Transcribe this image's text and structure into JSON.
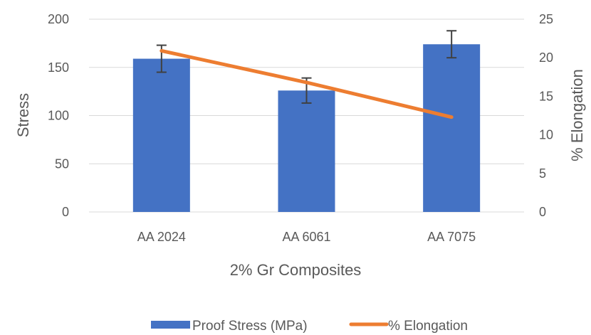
{
  "chart_data": {
    "type": "bar",
    "categories": [
      "AA 2024",
      "AA 6061",
      "AA 7075"
    ],
    "xlabel": "2% Gr Composites",
    "ylabel": "Stress",
    "y2label": "% Elongation",
    "ylim": [
      0,
      200
    ],
    "y2lim": [
      0,
      25
    ],
    "yticks": [
      "0",
      "50",
      "100",
      "150",
      "200"
    ],
    "y2ticks": [
      "0",
      "5",
      "10",
      "15",
      "20",
      "25"
    ],
    "grid": true,
    "legend_position": "bottom",
    "series": [
      {
        "name": "Proof Stress (MPa)",
        "type": "bar",
        "axis": "left",
        "values": [
          159,
          126,
          174
        ],
        "error_low": [
          145,
          113,
          160
        ],
        "error_high": [
          173,
          139,
          188
        ],
        "color": "#4472C4"
      },
      {
        "name": "% Elongation",
        "type": "line",
        "axis": "right",
        "values": [
          20.9,
          16.8,
          12.3
        ],
        "color": "#ED7D31"
      }
    ],
    "gridline_color": "#D9D9D9",
    "error_bar_color": "#404040"
  }
}
